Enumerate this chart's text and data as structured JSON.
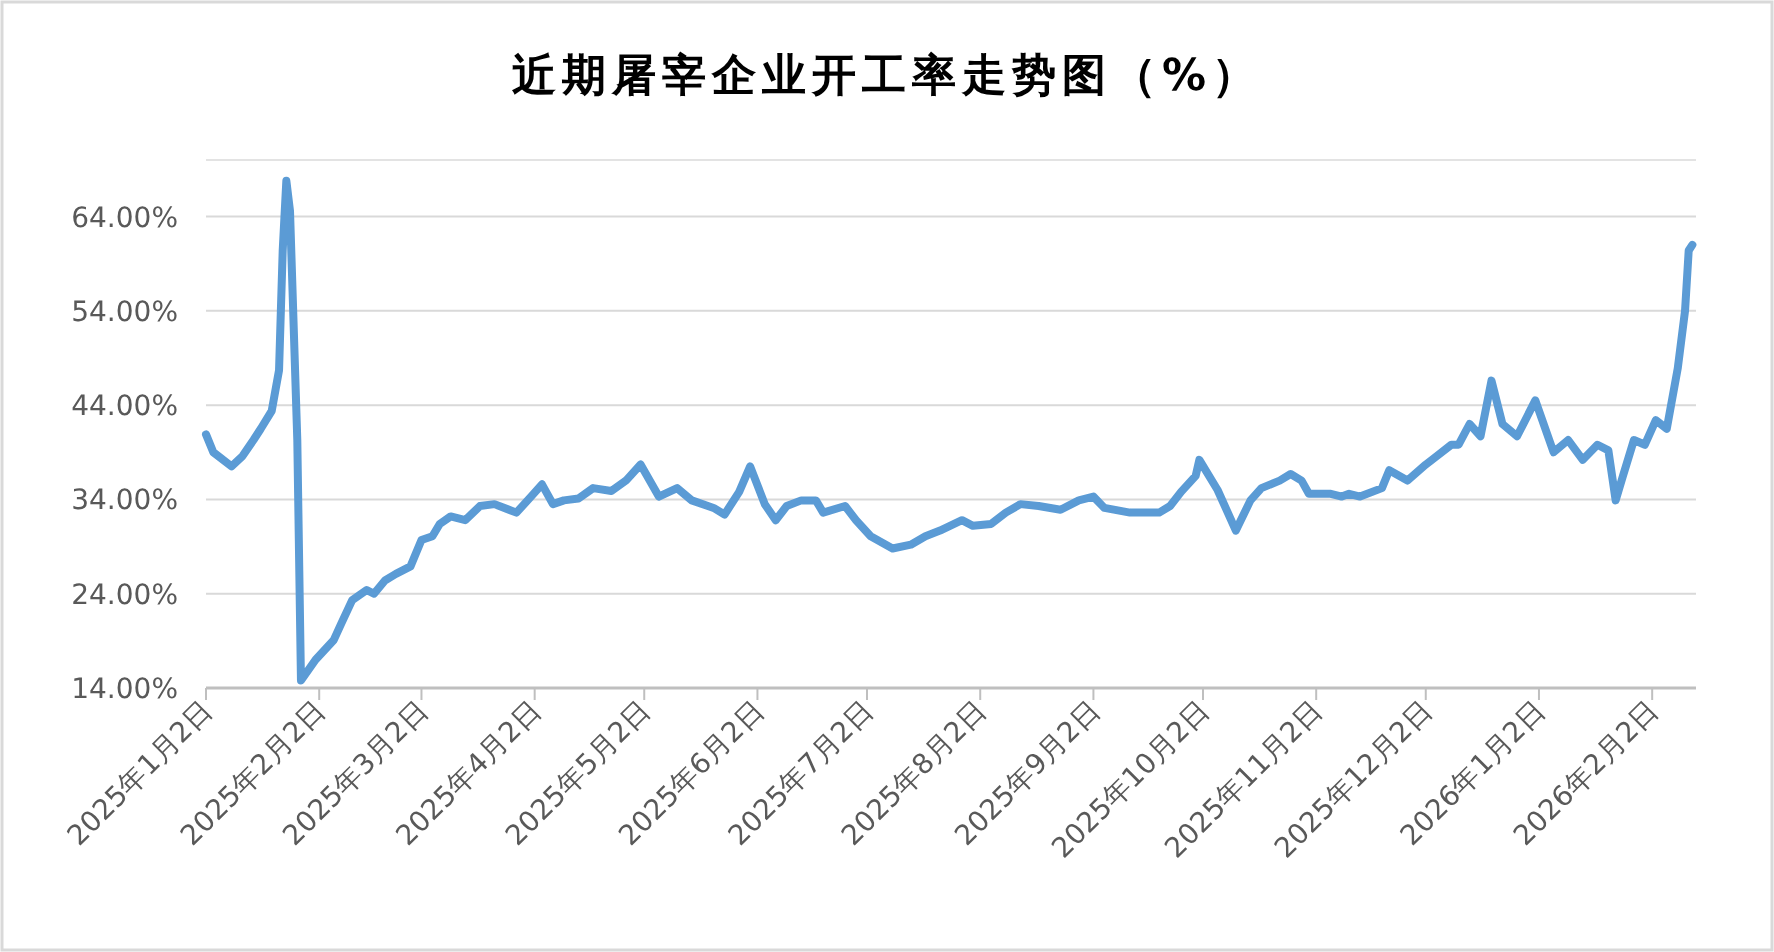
{
  "chart_data": {
    "type": "line",
    "title": "近期屠宰企业开工率走势图（%）",
    "grid": "y",
    "marker": "none",
    "line_style": "solid",
    "xlim": [
      "2025-01-02",
      "2026-02-14"
    ],
    "xticks": [
      {
        "value": "2025-01-02",
        "label": "2025年1月2日"
      },
      {
        "value": "2025-02-02",
        "label": "2025年2月2日"
      },
      {
        "value": "2025-03-02",
        "label": "2025年3月2日"
      },
      {
        "value": "2025-04-02",
        "label": "2025年4月2日"
      },
      {
        "value": "2025-05-02",
        "label": "2025年5月2日"
      },
      {
        "value": "2025-06-02",
        "label": "2025年6月2日"
      },
      {
        "value": "2025-07-02",
        "label": "2025年7月2日"
      },
      {
        "value": "2025-08-02",
        "label": "2025年8月2日"
      },
      {
        "value": "2025-09-02",
        "label": "2025年9月2日"
      },
      {
        "value": "2025-10-02",
        "label": "2025年10月2日"
      },
      {
        "value": "2025-11-02",
        "label": "2025年11月2日"
      },
      {
        "value": "2025-12-02",
        "label": "2025年12月2日"
      },
      {
        "value": "2026-01-02",
        "label": "2026年1月2日"
      },
      {
        "value": "2026-02-02",
        "label": "2026年2月2日"
      }
    ],
    "ylim": [
      14,
      70
    ],
    "yticks": [
      {
        "value": 14,
        "label": "14.00%"
      },
      {
        "value": 24,
        "label": "24.00%"
      },
      {
        "value": 34,
        "label": "34.00%"
      },
      {
        "value": 44,
        "label": "44.00%"
      },
      {
        "value": 54,
        "label": "54.00%"
      },
      {
        "value": 64,
        "label": "64.00%"
      }
    ],
    "series": [
      {
        "color": "#5b9bd5",
        "x": [
          "2025-01-02",
          "2025-01-04",
          "2025-01-09",
          "2025-01-12",
          "2025-01-15",
          "2025-01-17",
          "2025-01-20",
          "2025-01-22",
          "2025-01-23",
          "2025-01-24",
          "2025-01-25",
          "2025-01-27",
          "2025-01-28",
          "2025-02-01",
          "2025-02-06",
          "2025-02-08",
          "2025-02-11",
          "2025-02-15",
          "2025-02-17",
          "2025-02-20",
          "2025-02-23",
          "2025-02-27",
          "2025-03-02",
          "2025-03-05",
          "2025-03-07",
          "2025-03-10",
          "2025-03-14",
          "2025-03-18",
          "2025-03-22",
          "2025-03-28",
          "2025-04-01",
          "2025-04-04",
          "2025-04-07",
          "2025-04-10",
          "2025-04-14",
          "2025-04-18",
          "2025-04-23",
          "2025-04-27",
          "2025-05-01",
          "2025-05-06",
          "2025-05-11",
          "2025-05-15",
          "2025-05-21",
          "2025-05-24",
          "2025-05-28",
          "2025-05-31",
          "2025-06-04",
          "2025-06-07",
          "2025-06-10",
          "2025-06-14",
          "2025-06-18",
          "2025-06-20",
          "2025-06-26",
          "2025-06-29",
          "2025-07-03",
          "2025-07-09",
          "2025-07-14",
          "2025-07-18",
          "2025-07-22",
          "2025-07-28",
          "2025-07-31",
          "2025-08-05",
          "2025-08-09",
          "2025-08-13",
          "2025-08-18",
          "2025-08-24",
          "2025-08-29",
          "2025-09-02",
          "2025-09-05",
          "2025-09-12",
          "2025-09-20",
          "2025-09-23",
          "2025-09-26",
          "2025-09-30",
          "2025-10-01",
          "2025-10-06",
          "2025-10-11",
          "2025-10-15",
          "2025-10-18",
          "2025-10-23",
          "2025-10-26",
          "2025-10-29",
          "2025-10-31",
          "2025-11-06",
          "2025-11-09",
          "2025-11-11",
          "2025-11-14",
          "2025-11-20",
          "2025-11-22",
          "2025-11-27",
          "2025-12-02",
          "2025-12-05",
          "2025-12-09",
          "2025-12-11",
          "2025-12-14",
          "2025-12-17",
          "2025-12-20",
          "2025-12-23",
          "2025-12-27",
          "2026-01-01",
          "2026-01-06",
          "2026-01-10",
          "2026-01-14",
          "2026-01-18",
          "2026-01-21",
          "2026-01-23",
          "2026-01-25",
          "2026-01-28",
          "2026-01-31",
          "2026-02-03",
          "2026-02-06",
          "2026-02-09",
          "2026-02-11",
          "2026-02-12",
          "2026-02-13"
        ],
        "values": [
          40.9,
          39.0,
          37.5,
          38.6,
          40.3,
          41.5,
          43.4,
          47.7,
          60.4,
          67.8,
          64.6,
          40.3,
          14.8,
          17.0,
          19.1,
          20.8,
          23.3,
          24.4,
          24.0,
          25.4,
          26.1,
          26.9,
          29.7,
          30.1,
          31.4,
          32.2,
          31.8,
          33.3,
          33.5,
          32.6,
          34.3,
          35.6,
          33.5,
          33.9,
          34.1,
          35.2,
          34.9,
          36.0,
          37.7,
          34.3,
          35.2,
          33.9,
          33.1,
          32.4,
          34.8,
          37.5,
          33.5,
          31.8,
          33.3,
          33.9,
          33.9,
          32.6,
          33.3,
          31.8,
          30.1,
          28.8,
          29.2,
          30.1,
          30.7,
          31.8,
          31.2,
          31.4,
          32.6,
          33.5,
          33.3,
          32.9,
          33.9,
          34.3,
          33.1,
          32.6,
          32.6,
          33.3,
          34.8,
          36.5,
          38.2,
          35.0,
          30.7,
          33.9,
          35.2,
          36.0,
          36.7,
          36.0,
          34.6,
          34.6,
          34.3,
          34.6,
          34.3,
          35.2,
          37.1,
          36.0,
          37.7,
          38.6,
          39.8,
          39.8,
          42.0,
          40.7,
          46.6,
          42.0,
          40.7,
          44.5,
          39.0,
          40.3,
          38.2,
          39.8,
          39.2,
          33.9,
          36.5,
          40.3,
          39.8,
          42.4,
          41.5,
          47.9,
          54.0,
          60.4,
          61.0
        ]
      }
    ]
  }
}
